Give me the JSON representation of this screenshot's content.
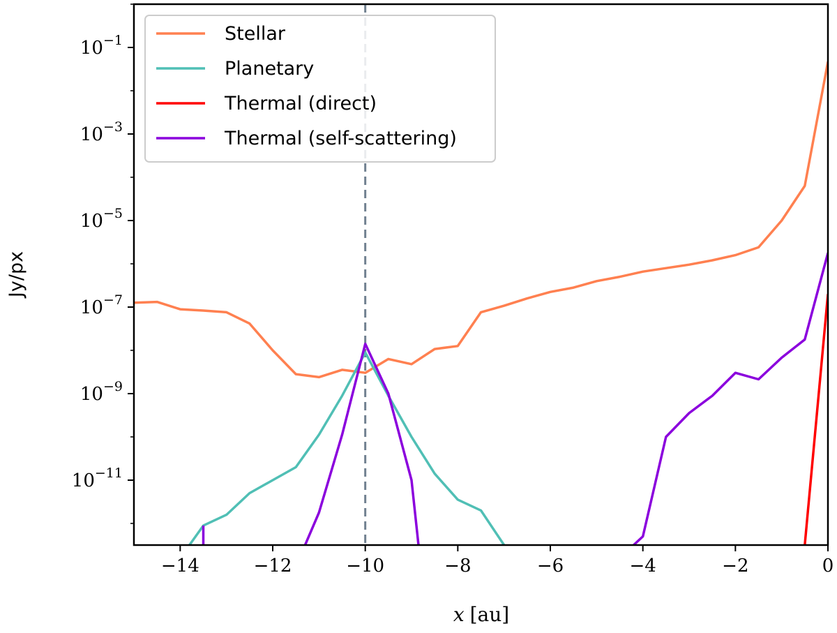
{
  "chart_data": {
    "type": "line",
    "title": "",
    "xlabel_var": "x",
    "xlabel_unit": "[au]",
    "ylabel": "Jy/px",
    "xlim": [
      -15,
      0
    ],
    "ylim_log10": [
      -12.5,
      0.0
    ],
    "yscale": "log",
    "x_ticks": [
      {
        "value": -14,
        "label": "−14"
      },
      {
        "value": -12,
        "label": "−12"
      },
      {
        "value": -10,
        "label": "−10"
      },
      {
        "value": -8,
        "label": "−8"
      },
      {
        "value": -6,
        "label": "−6"
      },
      {
        "value": -4,
        "label": "−4"
      },
      {
        "value": -2,
        "label": "−2"
      },
      {
        "value": 0,
        "label": "0"
      }
    ],
    "y_ticks": [
      {
        "exp": -1,
        "base": "10",
        "sup": "−1"
      },
      {
        "exp": -3,
        "base": "10",
        "sup": "−3"
      },
      {
        "exp": -5,
        "base": "10",
        "sup": "−5"
      },
      {
        "exp": -7,
        "base": "10",
        "sup": "−7"
      },
      {
        "exp": -9,
        "base": "10",
        "sup": "−9"
      },
      {
        "exp": -11,
        "base": "10",
        "sup": "−11"
      }
    ],
    "vline": {
      "x": -10,
      "color": "#708090",
      "style": "dashed"
    },
    "legend_position": "top-left",
    "series": [
      {
        "name": "Stellar",
        "color": "#FF8050",
        "x": [
          -15,
          -14.5,
          -14,
          -13.5,
          -13,
          -12.5,
          -12,
          -11.5,
          -11,
          -10.5,
          -10,
          -9.5,
          -9,
          -8.5,
          -8,
          -7.5,
          -7,
          -6.5,
          -6,
          -5.5,
          -5,
          -4.5,
          -4,
          -3.5,
          -3,
          -2.5,
          -2,
          -1.5,
          -1,
          -0.5,
          0
        ],
        "log10_y": [
          -6.9,
          -6.88,
          -7.05,
          -7.08,
          -7.12,
          -7.38,
          -8.0,
          -8.55,
          -8.62,
          -8.45,
          -8.52,
          -8.2,
          -8.32,
          -7.97,
          -7.9,
          -7.12,
          -6.97,
          -6.8,
          -6.65,
          -6.55,
          -6.4,
          -6.3,
          -6.18,
          -6.1,
          -6.02,
          -5.92,
          -5.8,
          -5.62,
          -5.0,
          -4.2,
          -1.33
        ]
      },
      {
        "name": "Planetary",
        "color": "#50BFB5",
        "x": [
          -13.8,
          -13.5,
          -13,
          -12.5,
          -12,
          -11.5,
          -11,
          -10.5,
          -10,
          -9.5,
          -9,
          -8.5,
          -8,
          -7.5,
          -7.0
        ],
        "log10_y": [
          -12.5,
          -12.05,
          -11.8,
          -11.3,
          -11.0,
          -10.7,
          -9.95,
          -9.05,
          -8.05,
          -9.05,
          -10.0,
          -10.85,
          -11.45,
          -11.7,
          -12.5
        ]
      },
      {
        "name": "Thermal (direct)",
        "color": "#FF0000",
        "x": [
          -0.5,
          0
        ],
        "log10_y": [
          -12.5,
          -6.7
        ]
      },
      {
        "name": "Thermal (self-scattering)",
        "color": "#8B00DD",
        "segments": [
          {
            "x": [
              -13.5,
              -13.5
            ],
            "log10_y": [
              -12.5,
              -12.05
            ]
          },
          {
            "x": [
              -11.3,
              -11,
              -10.5,
              -10,
              -9.5,
              -9,
              -8.85
            ],
            "log10_y": [
              -12.5,
              -11.75,
              -9.95,
              -7.85,
              -9.0,
              -11.0,
              -12.5
            ]
          },
          {
            "x": [
              -4.2,
              -4,
              -3.5,
              -3,
              -2.5,
              -2,
              -1.5,
              -1,
              -0.5,
              0
            ],
            "log10_y": [
              -12.5,
              -12.3,
              -10.0,
              -9.45,
              -9.05,
              -8.52,
              -8.67,
              -8.17,
              -7.75,
              -5.75
            ]
          }
        ]
      }
    ]
  }
}
